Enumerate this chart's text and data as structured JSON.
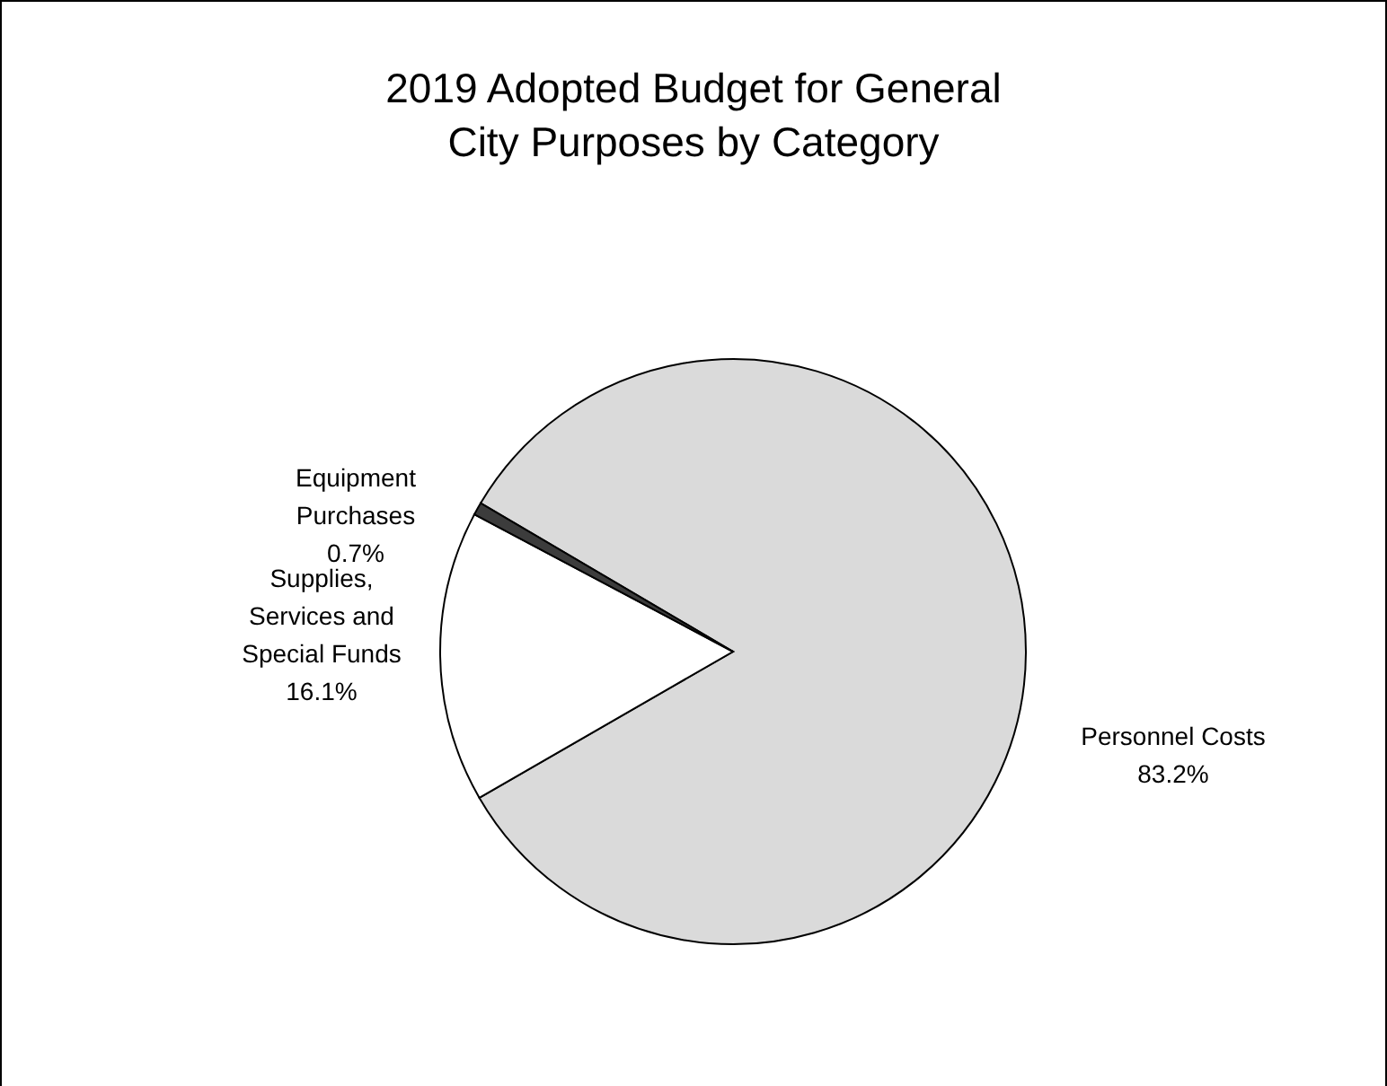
{
  "chart_data": {
    "type": "pie",
    "title": "2019 Adopted Budget for General City Purposes by Category",
    "categories": [
      "Personnel Costs",
      "Supplies, Services and Special Funds",
      "Equipment Purchases"
    ],
    "values": [
      83.2,
      16.1,
      0.7
    ],
    "value_labels": [
      "83.2%",
      "16.1%",
      "0.7%"
    ],
    "colors": [
      "#dadada",
      "#ffffff",
      "#3c3c3c"
    ],
    "legend": false
  }
}
